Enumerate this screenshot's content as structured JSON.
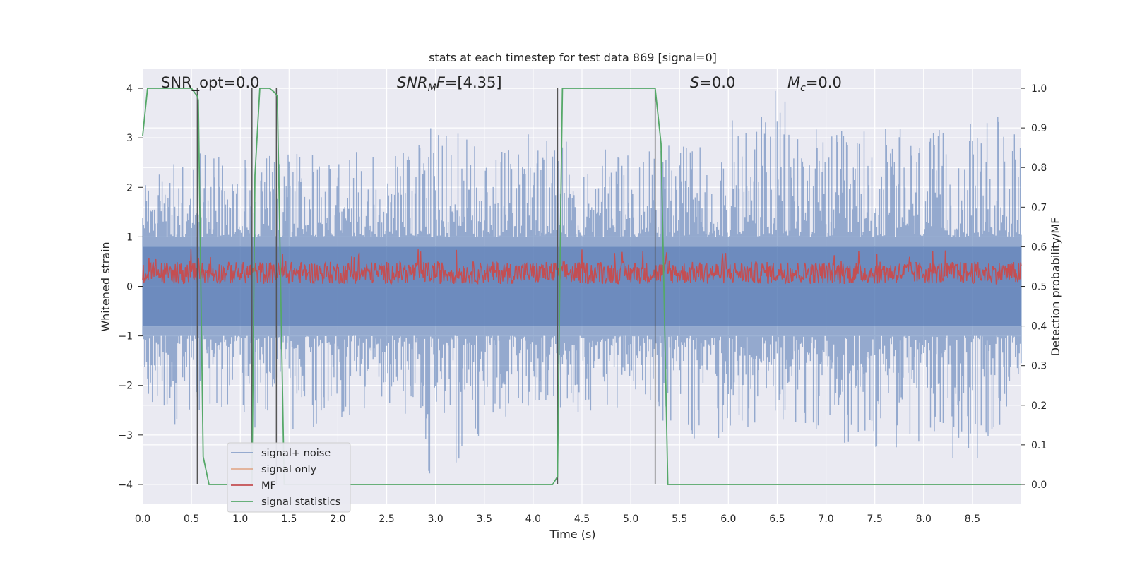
{
  "chart_data": {
    "type": "line",
    "title": "stats at each timestep for test data 869 [signal=0]",
    "xlabel": "Time (s)",
    "ylabel": "Whitened strain",
    "y2label": "Detection probability/MF",
    "xlim": [
      0.0,
      9.0
    ],
    "ylim": [
      -4.4,
      4.4
    ],
    "y2lim": [
      -0.05,
      1.05
    ],
    "xticks": [
      0.0,
      0.5,
      1.0,
      1.5,
      2.0,
      2.5,
      3.0,
      3.5,
      4.0,
      4.5,
      5.0,
      5.5,
      6.0,
      6.5,
      7.0,
      7.5,
      8.0,
      8.5
    ],
    "xtick_labels": [
      "0.0",
      "0.5",
      "1.0",
      "1.5",
      "2.0",
      "2.5",
      "3.0",
      "3.5",
      "4.0",
      "4.5",
      "5.0",
      "5.5",
      "6.0",
      "6.5",
      "7.0",
      "7.5",
      "8.0",
      "8.5"
    ],
    "yticks": [
      -4,
      -3,
      -2,
      -1,
      0,
      1,
      2,
      3,
      4
    ],
    "ytick_labels": [
      "−4",
      "−3",
      "−2",
      "−1",
      "0",
      "1",
      "2",
      "3",
      "4"
    ],
    "y2ticks": [
      0.0,
      0.1,
      0.2,
      0.3,
      0.4,
      0.5,
      0.6,
      0.7,
      0.8,
      0.9,
      1.0
    ],
    "y2tick_labels": [
      "0.0",
      "0.1",
      "0.2",
      "0.3",
      "0.4",
      "0.5",
      "0.6",
      "0.7",
      "0.8",
      "0.9",
      "1.0"
    ],
    "grid": true,
    "legend_placement": "lower-left",
    "annotations": {
      "snr_opt": "SNR_opt=0.0",
      "snr_mf": "SNRₘF=[4.35]",
      "s": "S=0.0",
      "mc": "Mᶜ=0.0"
    },
    "series": [
      {
        "name": "signal+ noise",
        "color": "#4c72b0",
        "description_values": "dense noise band",
        "envelope_sample_x": [
          0.0,
          0.5,
          1.0,
          1.5,
          2.0,
          2.5,
          3.0,
          3.5,
          4.0,
          4.5,
          5.0,
          5.5,
          6.0,
          6.5,
          7.0,
          7.5,
          8.0,
          8.5,
          9.0
        ],
        "envelope_max": [
          2.3,
          2.8,
          2.6,
          2.7,
          2.7,
          2.8,
          3.4,
          2.8,
          3.2,
          2.9,
          2.7,
          2.9,
          3.3,
          4.0,
          3.1,
          3.3,
          3.1,
          3.3,
          3.7
        ],
        "envelope_min": [
          -3.2,
          -2.6,
          -2.8,
          -3.0,
          -2.7,
          -2.5,
          -4.0,
          -3.0,
          -2.4,
          -2.6,
          -2.4,
          -3.0,
          -3.3,
          -2.8,
          -3.1,
          -3.3,
          -3.5,
          -3.6,
          -2.3
        ]
      },
      {
        "name": "signal only",
        "color": "#dd8452",
        "values": []
      },
      {
        "name": "MF",
        "color": "#c44e52",
        "band_low": 0.0,
        "band_high": 0.65,
        "peak": 0.98
      },
      {
        "name": "signal statistics",
        "color": "#55a868",
        "x": [
          0.0,
          0.05,
          0.1,
          0.3,
          0.5,
          0.56,
          0.57,
          0.62,
          0.68,
          0.7,
          1.0,
          1.1,
          1.12,
          1.15,
          1.2,
          1.3,
          1.35,
          1.38,
          1.45,
          1.5,
          4.2,
          4.25,
          4.28,
          4.3,
          4.5,
          4.7,
          5.0,
          5.25,
          5.31,
          5.38,
          5.4,
          6.0,
          9.0
        ],
        "y2": [
          0.88,
          1.0,
          1.0,
          1.0,
          1.0,
          0.98,
          0.97,
          0.07,
          0.0,
          0.0,
          0.0,
          0.0,
          0.0,
          0.78,
          1.0,
          1.0,
          0.99,
          0.98,
          0.0,
          0.0,
          0.0,
          0.02,
          0.65,
          1.0,
          1.0,
          1.0,
          1.0,
          1.0,
          0.86,
          0.0,
          0.0,
          0.0,
          0.0
        ]
      }
    ],
    "vertical_markers_x": [
      0.56,
      1.12,
      1.37,
      4.25,
      5.25
    ]
  }
}
